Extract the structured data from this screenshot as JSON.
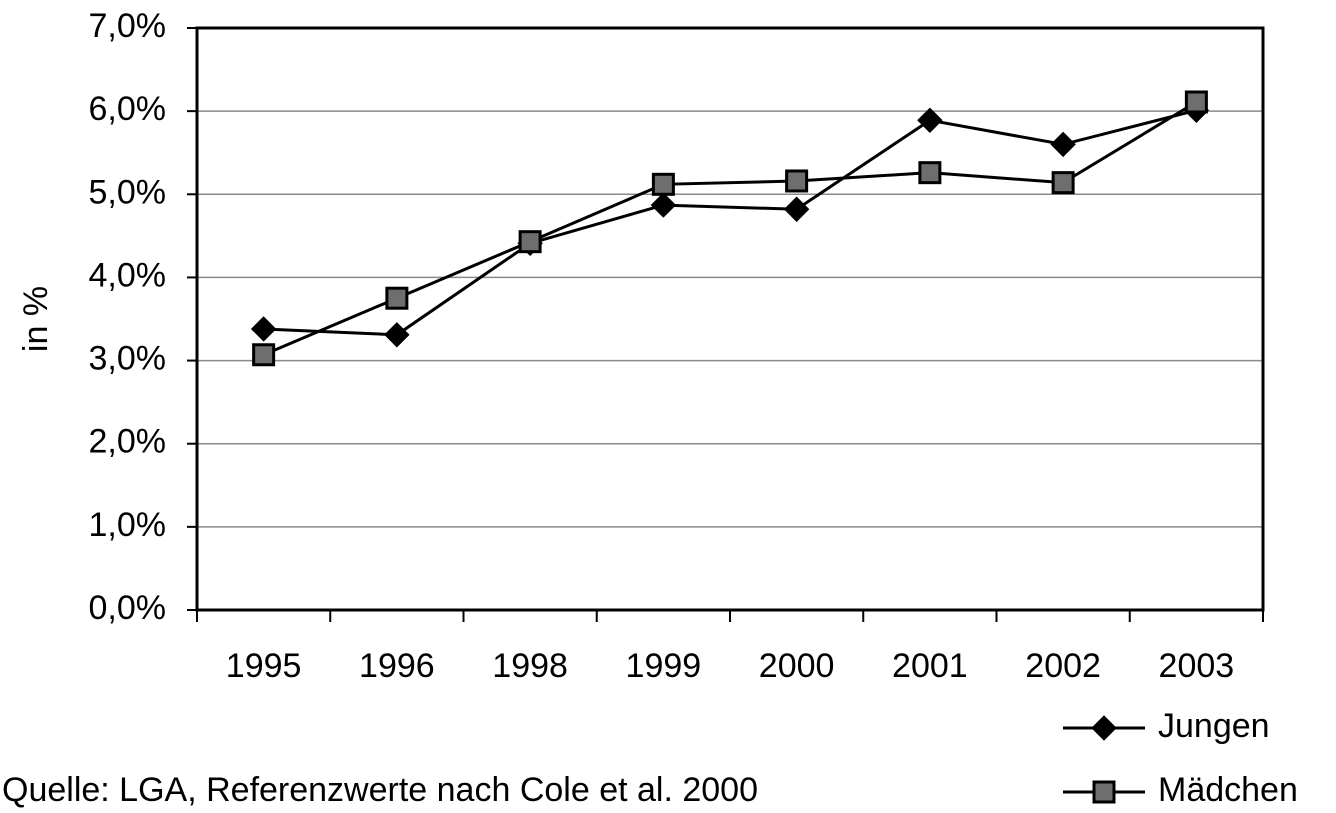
{
  "chart_data": {
    "type": "line",
    "y_label": "in %",
    "source": "Quelle: LGA, Referenzwerte nach Cole et al. 2000",
    "categories": [
      "1995",
      "1996",
      "1998",
      "1999",
      "2000",
      "2001",
      "2002",
      "2003"
    ],
    "series": [
      {
        "name": "Jungen",
        "color": "#000000",
        "marker": "diamond",
        "marker_color": "#000000",
        "values": [
          3.38,
          3.31,
          4.41,
          4.87,
          4.82,
          5.89,
          5.6,
          6.01
        ]
      },
      {
        "name": "Mädchen",
        "color": "#000000",
        "marker": "square",
        "marker_color": "#6e6e6e",
        "values": [
          3.07,
          3.75,
          4.43,
          5.12,
          5.16,
          5.26,
          5.14,
          6.11
        ]
      }
    ],
    "ylim": [
      0,
      7
    ],
    "yticks": [
      {
        "value": 0,
        "label": "0,0%"
      },
      {
        "value": 1,
        "label": "1,0%"
      },
      {
        "value": 2,
        "label": "2,0%"
      },
      {
        "value": 3,
        "label": "3,0%"
      },
      {
        "value": 4,
        "label": "4,0%"
      },
      {
        "value": 5,
        "label": "5,0%"
      },
      {
        "value": 6,
        "label": "6,0%"
      },
      {
        "value": 7,
        "label": "7,0%"
      }
    ],
    "grid": true,
    "legend": "bottom-right"
  }
}
